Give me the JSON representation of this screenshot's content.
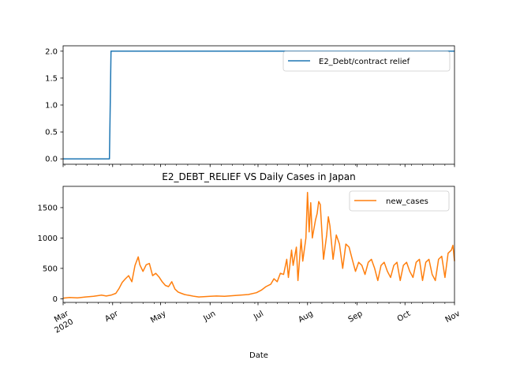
{
  "chart_data": [
    {
      "type": "line",
      "title": "",
      "xlabel": "",
      "ylabel": "",
      "xlim": [
        "2020-03-01",
        "2020-11-01"
      ],
      "ylim": [
        -0.1,
        2.1
      ],
      "yticks": [
        0.0,
        0.5,
        1.0,
        1.5,
        2.0
      ],
      "ytick_labels": [
        "0.0",
        "0.5",
        "1.0",
        "1.5",
        "2.0"
      ],
      "grid": false,
      "legend": "top-right",
      "series": [
        {
          "name": "E2_Debt/contract relief",
          "color": "#1f77b4",
          "points": [
            [
              "2020-03-01",
              0
            ],
            [
              "2020-03-30",
              0
            ],
            [
              "2020-03-31",
              2
            ],
            [
              "2020-11-01",
              2
            ]
          ]
        }
      ]
    },
    {
      "type": "line",
      "title": "E2_DEBT_RELIEF VS Daily Cases in Japan",
      "xlabel": "Date",
      "ylabel": "",
      "xlim": [
        "2020-03-01",
        "2020-11-01"
      ],
      "ylim": [
        -60,
        1850
      ],
      "yticks": [
        0,
        500,
        1000,
        1500
      ],
      "ytick_labels": [
        "0",
        "500",
        "1000",
        "1500"
      ],
      "xticks": [
        "2020-03-01",
        "2020-04-01",
        "2020-05-01",
        "2020-06-01",
        "2020-07-01",
        "2020-08-01",
        "2020-09-01",
        "2020-10-01",
        "2020-11-01"
      ],
      "xtick_labels": [
        "Mar\n2020",
        "Apr",
        "May",
        "Jun",
        "Jul",
        "Aug",
        "Sep",
        "Oct",
        "Nov"
      ],
      "grid": false,
      "legend": "top-right",
      "series": [
        {
          "name": "new_cases",
          "color": "#ff7f0e",
          "points": [
            [
              "2020-03-01",
              10
            ],
            [
              "2020-03-05",
              20
            ],
            [
              "2020-03-10",
              15
            ],
            [
              "2020-03-15",
              30
            ],
            [
              "2020-03-20",
              40
            ],
            [
              "2020-03-25",
              60
            ],
            [
              "2020-03-28",
              45
            ],
            [
              "2020-03-31",
              60
            ],
            [
              "2020-04-03",
              90
            ],
            [
              "2020-04-05",
              170
            ],
            [
              "2020-04-07",
              270
            ],
            [
              "2020-04-09",
              330
            ],
            [
              "2020-04-11",
              380
            ],
            [
              "2020-04-13",
              280
            ],
            [
              "2020-04-15",
              550
            ],
            [
              "2020-04-17",
              690
            ],
            [
              "2020-04-18",
              560
            ],
            [
              "2020-04-20",
              450
            ],
            [
              "2020-04-22",
              560
            ],
            [
              "2020-04-24",
              580
            ],
            [
              "2020-04-26",
              380
            ],
            [
              "2020-04-28",
              420
            ],
            [
              "2020-04-30",
              360
            ],
            [
              "2020-05-02",
              280
            ],
            [
              "2020-05-04",
              220
            ],
            [
              "2020-05-06",
              200
            ],
            [
              "2020-05-08",
              280
            ],
            [
              "2020-05-10",
              160
            ],
            [
              "2020-05-12",
              110
            ],
            [
              "2020-05-14",
              90
            ],
            [
              "2020-05-16",
              70
            ],
            [
              "2020-05-18",
              60
            ],
            [
              "2020-05-20",
              50
            ],
            [
              "2020-05-22",
              40
            ],
            [
              "2020-05-25",
              30
            ],
            [
              "2020-05-28",
              35
            ],
            [
              "2020-06-01",
              40
            ],
            [
              "2020-06-05",
              45
            ],
            [
              "2020-06-10",
              40
            ],
            [
              "2020-06-15",
              50
            ],
            [
              "2020-06-20",
              60
            ],
            [
              "2020-06-25",
              70
            ],
            [
              "2020-06-30",
              100
            ],
            [
              "2020-07-03",
              140
            ],
            [
              "2020-07-06",
              200
            ],
            [
              "2020-07-09",
              240
            ],
            [
              "2020-07-11",
              330
            ],
            [
              "2020-07-13",
              280
            ],
            [
              "2020-07-15",
              420
            ],
            [
              "2020-07-17",
              400
            ],
            [
              "2020-07-19",
              650
            ],
            [
              "2020-07-20",
              350
            ],
            [
              "2020-07-22",
              800
            ],
            [
              "2020-07-23",
              550
            ],
            [
              "2020-07-25",
              850
            ],
            [
              "2020-07-26",
              300
            ],
            [
              "2020-07-28",
              980
            ],
            [
              "2020-07-29",
              620
            ],
            [
              "2020-07-31",
              1000
            ],
            [
              "2020-08-01",
              1750
            ],
            [
              "2020-08-02",
              1100
            ],
            [
              "2020-08-03",
              1580
            ],
            [
              "2020-08-04",
              1000
            ],
            [
              "2020-08-06",
              1300
            ],
            [
              "2020-08-07",
              1400
            ],
            [
              "2020-08-08",
              1600
            ],
            [
              "2020-08-09",
              1550
            ],
            [
              "2020-08-11",
              650
            ],
            [
              "2020-08-13",
              1050
            ],
            [
              "2020-08-14",
              1350
            ],
            [
              "2020-08-15",
              1200
            ],
            [
              "2020-08-17",
              650
            ],
            [
              "2020-08-19",
              1050
            ],
            [
              "2020-08-21",
              900
            ],
            [
              "2020-08-23",
              500
            ],
            [
              "2020-08-25",
              900
            ],
            [
              "2020-08-27",
              850
            ],
            [
              "2020-08-29",
              650
            ],
            [
              "2020-08-31",
              450
            ],
            [
              "2020-09-02",
              600
            ],
            [
              "2020-09-04",
              550
            ],
            [
              "2020-09-06",
              400
            ],
            [
              "2020-09-08",
              600
            ],
            [
              "2020-09-10",
              650
            ],
            [
              "2020-09-12",
              500
            ],
            [
              "2020-09-14",
              300
            ],
            [
              "2020-09-16",
              550
            ],
            [
              "2020-09-18",
              600
            ],
            [
              "2020-09-20",
              450
            ],
            [
              "2020-09-22",
              350
            ],
            [
              "2020-09-24",
              550
            ],
            [
              "2020-09-26",
              600
            ],
            [
              "2020-09-28",
              300
            ],
            [
              "2020-09-30",
              550
            ],
            [
              "2020-10-02",
              600
            ],
            [
              "2020-10-04",
              450
            ],
            [
              "2020-10-06",
              350
            ],
            [
              "2020-10-08",
              600
            ],
            [
              "2020-10-10",
              650
            ],
            [
              "2020-10-12",
              300
            ],
            [
              "2020-10-14",
              600
            ],
            [
              "2020-10-16",
              650
            ],
            [
              "2020-10-18",
              400
            ],
            [
              "2020-10-20",
              300
            ],
            [
              "2020-10-22",
              650
            ],
            [
              "2020-10-24",
              700
            ],
            [
              "2020-10-26",
              350
            ],
            [
              "2020-10-28",
              750
            ],
            [
              "2020-10-30",
              800
            ],
            [
              "2020-10-31",
              880
            ],
            [
              "2020-11-01",
              620
            ]
          ]
        }
      ]
    }
  ]
}
